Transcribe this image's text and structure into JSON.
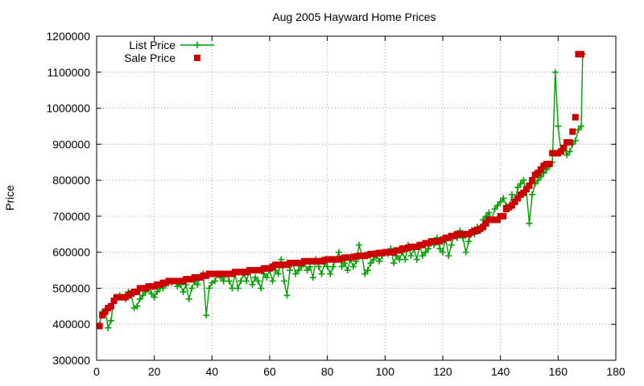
{
  "chart_data": {
    "type": "scatter",
    "title": "Aug 2005 Hayward Home Prices",
    "xlabel": "",
    "ylabel": "Price",
    "xlim": [
      0,
      180
    ],
    "ylim": [
      300000,
      1200000
    ],
    "x_ticks": [
      0,
      20,
      40,
      60,
      80,
      100,
      120,
      140,
      160,
      180
    ],
    "y_ticks": [
      300000,
      400000,
      500000,
      600000,
      700000,
      800000,
      900000,
      1000000,
      1100000,
      1200000
    ],
    "grid": true,
    "legend_position": "top-left",
    "series": [
      {
        "name": "List Price",
        "style": "linespoints",
        "marker": "plus",
        "color": "#00a000",
        "values": [
          400000,
          435000,
          440000,
          390000,
          410000,
          470000,
          475000,
          480000,
          475000,
          470000,
          490000,
          480000,
          445000,
          450000,
          470000,
          480000,
          490000,
          500000,
          485000,
          475000,
          490000,
          500000,
          500000,
          510000,
          520000,
          515000,
          520000,
          505000,
          510000,
          490000,
          510000,
          470000,
          500000,
          520000,
          510000,
          530000,
          540000,
          425000,
          500000,
          515000,
          520000,
          540000,
          530000,
          520000,
          540000,
          520000,
          500000,
          540000,
          500000,
          520000,
          540000,
          520000,
          550000,
          510000,
          530000,
          520000,
          500000,
          540000,
          530000,
          550000,
          520000,
          550000,
          540000,
          580000,
          520000,
          480000,
          550000,
          570000,
          540000,
          550000,
          560000,
          570000,
          550000,
          560000,
          530000,
          580000,
          560000,
          540000,
          570000,
          560000,
          540000,
          560000,
          580000,
          600000,
          560000,
          570000,
          550000,
          580000,
          560000,
          575000,
          620000,
          590000,
          540000,
          550000,
          570000,
          580000,
          590000,
          575000,
          590000,
          600000,
          595000,
          610000,
          570000,
          590000,
          580000,
          600000,
          580000,
          620000,
          590000,
          610000,
          580000,
          620000,
          590000,
          600000,
          610000,
          630000,
          620000,
          640000,
          610000,
          600000,
          640000,
          590000,
          620000,
          650000,
          640000,
          660000,
          640000,
          600000,
          630000,
          660000,
          650000,
          670000,
          660000,
          690000,
          700000,
          710000,
          690000,
          720000,
          730000,
          740000,
          750000,
          730000,
          720000,
          760000,
          740000,
          780000,
          790000,
          800000,
          770000,
          680000,
          760000,
          790000,
          800000,
          810000,
          820000,
          830000,
          840000,
          850000,
          1100000,
          950000,
          880000,
          890000,
          870000,
          880000,
          900000,
          910000,
          940000,
          950000,
          1150000
        ],
        "x": [
          1,
          2,
          3,
          4,
          5,
          6,
          7,
          8,
          9,
          10,
          11,
          12,
          13,
          14,
          15,
          16,
          17,
          18,
          19,
          20,
          21,
          22,
          23,
          24,
          25,
          26,
          27,
          28,
          29,
          30,
          31,
          32,
          33,
          34,
          35,
          36,
          37,
          38,
          39,
          40,
          41,
          42,
          43,
          44,
          45,
          46,
          47,
          48,
          49,
          50,
          51,
          52,
          53,
          54,
          55,
          56,
          57,
          58,
          59,
          60,
          61,
          62,
          63,
          64,
          65,
          66,
          67,
          68,
          69,
          70,
          71,
          72,
          73,
          74,
          75,
          76,
          77,
          78,
          79,
          80,
          81,
          82,
          83,
          84,
          85,
          86,
          87,
          88,
          89,
          90,
          91,
          92,
          93,
          94,
          95,
          96,
          97,
          98,
          99,
          100,
          101,
          102,
          103,
          104,
          105,
          106,
          107,
          108,
          109,
          110,
          111,
          112,
          113,
          114,
          115,
          116,
          117,
          118,
          119,
          120,
          121,
          122,
          123,
          124,
          125,
          126,
          127,
          128,
          129,
          130,
          131,
          132,
          133,
          134,
          135,
          136,
          137,
          138,
          139,
          140,
          141,
          142,
          143,
          144,
          145,
          146,
          147,
          148,
          149,
          150,
          151,
          152,
          153,
          154,
          155,
          156,
          157,
          158,
          159,
          160,
          161,
          162,
          163,
          164,
          165,
          166,
          167,
          168,
          168.5
        ]
      },
      {
        "name": "Sale Price",
        "style": "points",
        "marker": "square",
        "color": "#cc0000",
        "x": [
          1,
          2,
          3,
          4,
          5,
          6,
          7,
          8,
          9,
          10,
          11,
          12,
          13,
          14,
          15,
          16,
          17,
          18,
          19,
          20,
          21,
          22,
          23,
          24,
          25,
          26,
          27,
          28,
          29,
          30,
          31,
          32,
          33,
          34,
          35,
          36,
          37,
          38,
          39,
          40,
          41,
          42,
          43,
          44,
          45,
          46,
          47,
          48,
          49,
          50,
          51,
          52,
          53,
          54,
          55,
          56,
          57,
          58,
          59,
          60,
          61,
          62,
          63,
          64,
          65,
          66,
          67,
          68,
          69,
          70,
          71,
          72,
          73,
          74,
          75,
          76,
          77,
          78,
          79,
          80,
          81,
          82,
          83,
          84,
          85,
          86,
          87,
          88,
          89,
          90,
          91,
          92,
          93,
          94,
          95,
          96,
          97,
          98,
          99,
          100,
          101,
          102,
          103,
          104,
          105,
          106,
          107,
          108,
          109,
          110,
          111,
          112,
          113,
          114,
          115,
          116,
          117,
          118,
          119,
          120,
          121,
          122,
          123,
          124,
          125,
          126,
          127,
          128,
          129,
          130,
          131,
          132,
          133,
          134,
          135,
          136,
          137,
          138,
          139,
          140,
          141,
          142,
          143,
          144,
          145,
          146,
          147,
          148,
          149,
          150,
          151,
          152,
          153,
          154,
          155,
          156,
          157,
          158,
          159,
          160,
          161,
          162,
          163,
          164,
          165,
          166,
          167,
          168
        ],
        "values": [
          395000,
          425000,
          435000,
          445000,
          450000,
          465000,
          475000,
          475000,
          475000,
          475000,
          480000,
          485000,
          490000,
          490000,
          500000,
          500000,
          500000,
          505000,
          505000,
          505000,
          510000,
          510000,
          515000,
          515000,
          520000,
          520000,
          520000,
          520000,
          520000,
          520000,
          525000,
          525000,
          525000,
          530000,
          530000,
          530000,
          535000,
          535000,
          540000,
          540000,
          540000,
          540000,
          540000,
          540000,
          540000,
          540000,
          540000,
          545000,
          545000,
          545000,
          545000,
          545000,
          550000,
          550000,
          550000,
          550000,
          550000,
          555000,
          555000,
          555000,
          560000,
          565000,
          565000,
          565000,
          565000,
          565000,
          570000,
          570000,
          570000,
          570000,
          570000,
          575000,
          575000,
          575000,
          575000,
          575000,
          575000,
          575000,
          578000,
          580000,
          580000,
          580000,
          580000,
          580000,
          582000,
          585000,
          585000,
          585000,
          587000,
          588000,
          590000,
          590000,
          590000,
          592000,
          595000,
          595000,
          596000,
          598000,
          598000,
          600000,
          600000,
          600000,
          600000,
          605000,
          605000,
          610000,
          610000,
          612000,
          615000,
          615000,
          615000,
          620000,
          620000,
          625000,
          625000,
          630000,
          630000,
          630000,
          630000,
          635000,
          640000,
          640000,
          645000,
          645000,
          650000,
          650000,
          650000,
          650000,
          650000,
          655000,
          660000,
          660000,
          665000,
          670000,
          680000,
          690000,
          690000,
          690000,
          690000,
          700000,
          700000,
          720000,
          725000,
          730000,
          740000,
          750000,
          760000,
          765000,
          775000,
          785000,
          800000,
          815000,
          820000,
          830000,
          840000,
          845000,
          845000,
          875000,
          875000,
          875000,
          880000,
          890000,
          905000,
          905000,
          935000,
          975000,
          1150000,
          1150000
        ]
      }
    ]
  }
}
